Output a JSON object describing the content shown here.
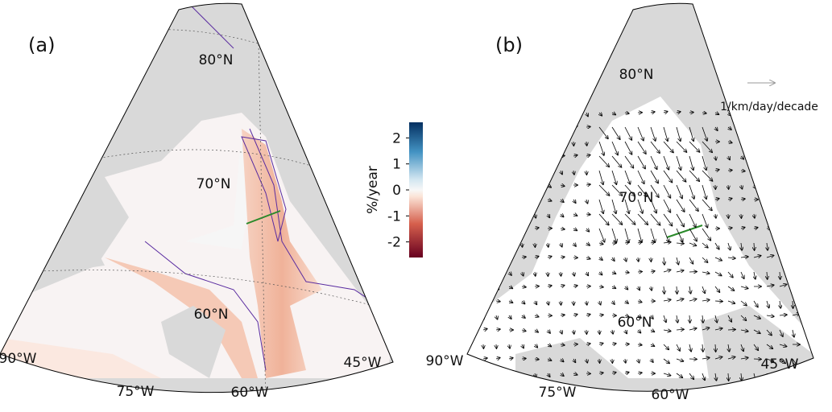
{
  "panels": [
    {
      "label": "(a)",
      "lat_labels": [
        "80°N",
        "70°N",
        "60°N"
      ],
      "lon_labels": [
        "90°W",
        "75°W",
        "60°W",
        "45°W"
      ]
    },
    {
      "label": "(b)",
      "lat_labels": [
        "80°N",
        "70°N",
        "60°N"
      ],
      "lon_labels": [
        "90°W",
        "75°W",
        "60°W",
        "45°W"
      ]
    }
  ],
  "colorbar": {
    "title": "%/year",
    "lim": [
      -2.6,
      2.6
    ],
    "ticks": [
      2,
      1,
      0,
      -1,
      -2
    ]
  },
  "arrow_legend": "1/km/day/decade"
}
